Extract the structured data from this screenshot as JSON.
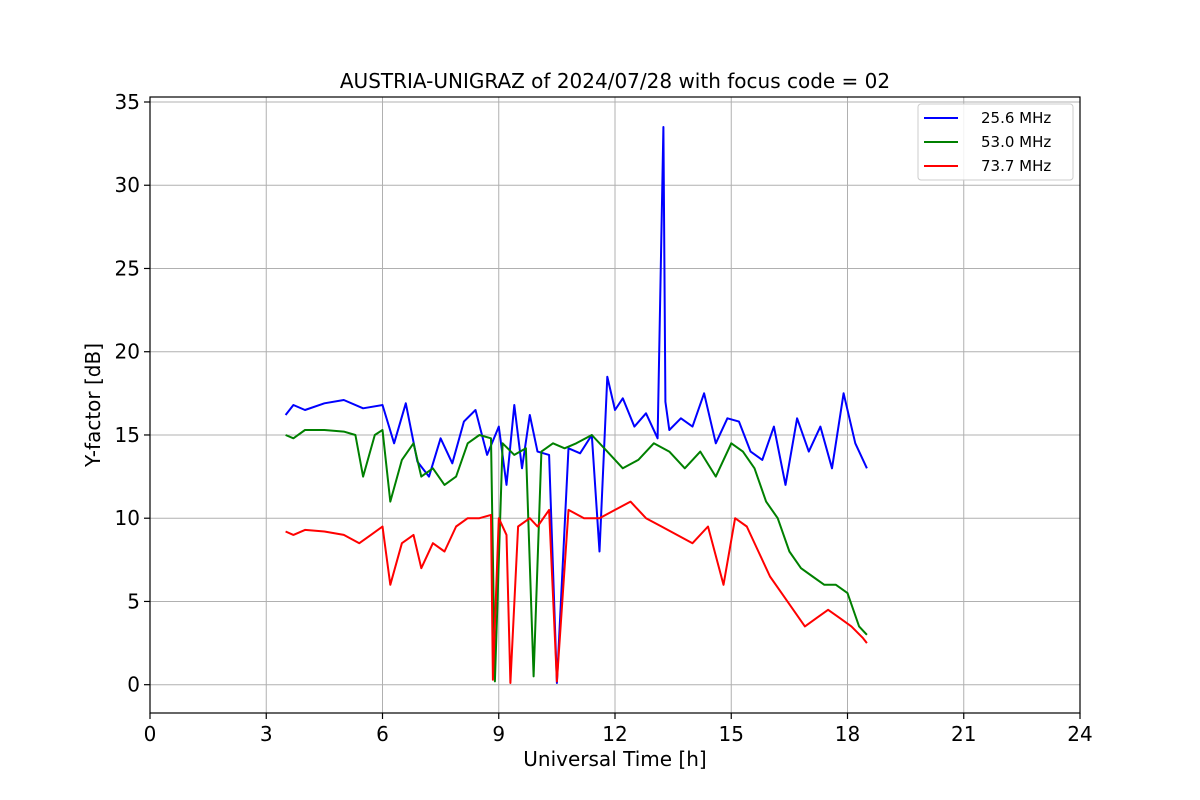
{
  "chart_data": {
    "type": "line",
    "title": "AUSTRIA-UNIGRAZ of 2024/07/28 with focus code = 02",
    "xlabel": "Universal Time [h]",
    "ylabel": "Y-factor [dB]",
    "xlim": [
      0,
      24
    ],
    "ylim": [
      -1.7,
      35.3
    ],
    "x_ticks": [
      0,
      3,
      6,
      9,
      12,
      15,
      18,
      21,
      24
    ],
    "y_ticks": [
      0,
      5,
      10,
      15,
      20,
      25,
      30,
      35
    ],
    "grid": true,
    "legend_position": "top-right",
    "series": [
      {
        "name": "25.6 MHz",
        "color": "#0000ff",
        "x": [
          3.5,
          3.7,
          4.0,
          4.5,
          5.0,
          5.5,
          6.0,
          6.3,
          6.6,
          6.9,
          7.2,
          7.5,
          7.8,
          8.1,
          8.4,
          8.7,
          9.0,
          9.2,
          9.4,
          9.6,
          9.8,
          10.0,
          10.3,
          10.5,
          10.8,
          11.1,
          11.4,
          11.6,
          11.8,
          12.0,
          12.2,
          12.5,
          12.8,
          13.1,
          13.25,
          13.3,
          13.4,
          13.7,
          14.0,
          14.3,
          14.6,
          14.9,
          15.2,
          15.5,
          15.8,
          16.1,
          16.4,
          16.7,
          17.0,
          17.3,
          17.6,
          17.9,
          18.2,
          18.5
        ],
        "values": [
          16.2,
          16.8,
          16.5,
          16.9,
          17.1,
          16.6,
          16.8,
          14.5,
          16.9,
          13.4,
          12.5,
          14.8,
          13.3,
          15.8,
          16.5,
          13.8,
          15.5,
          12.0,
          16.8,
          13.0,
          16.2,
          14.0,
          13.8,
          0.1,
          14.2,
          13.9,
          15.0,
          8.0,
          18.5,
          16.5,
          17.2,
          15.5,
          16.3,
          14.8,
          33.5,
          17.0,
          15.3,
          16.0,
          15.5,
          17.5,
          14.5,
          16.0,
          15.8,
          14.0,
          13.5,
          15.5,
          12.0,
          16.0,
          14.0,
          15.5,
          13.0,
          17.5,
          14.5,
          13.0
        ]
      },
      {
        "name": "53.0 MHz",
        "color": "#008000",
        "x": [
          3.5,
          3.7,
          4.0,
          4.5,
          5.0,
          5.3,
          5.5,
          5.8,
          6.0,
          6.2,
          6.5,
          6.8,
          7.0,
          7.3,
          7.6,
          7.9,
          8.2,
          8.5,
          8.8,
          8.9,
          9.1,
          9.4,
          9.7,
          9.9,
          10.1,
          10.4,
          10.7,
          11.0,
          11.4,
          11.8,
          12.2,
          12.6,
          13.0,
          13.4,
          13.8,
          14.2,
          14.6,
          15.0,
          15.3,
          15.6,
          15.9,
          16.2,
          16.5,
          16.8,
          17.1,
          17.4,
          17.7,
          18.0,
          18.3,
          18.5
        ],
        "values": [
          15.0,
          14.8,
          15.3,
          15.3,
          15.2,
          15.0,
          12.5,
          15.0,
          15.3,
          11.0,
          13.5,
          14.5,
          12.5,
          13.0,
          12.0,
          12.5,
          14.5,
          15.0,
          14.8,
          0.2,
          14.5,
          13.8,
          14.2,
          0.5,
          14.0,
          14.5,
          14.2,
          14.5,
          15.0,
          14.0,
          13.0,
          13.5,
          14.5,
          14.0,
          13.0,
          14.0,
          12.5,
          14.5,
          14.0,
          13.0,
          11.0,
          10.0,
          8.0,
          7.0,
          6.5,
          6.0,
          6.0,
          5.5,
          3.5,
          3.0
        ]
      },
      {
        "name": "73.7 MHz",
        "color": "#ff0000",
        "x": [
          3.5,
          3.7,
          4.0,
          4.5,
          5.0,
          5.4,
          5.7,
          6.0,
          6.2,
          6.5,
          6.8,
          7.0,
          7.3,
          7.6,
          7.9,
          8.2,
          8.5,
          8.8,
          8.85,
          9.0,
          9.2,
          9.3,
          9.5,
          9.8,
          10.0,
          10.3,
          10.5,
          10.8,
          11.2,
          11.6,
          12.0,
          12.4,
          12.8,
          13.2,
          13.6,
          14.0,
          14.4,
          14.8,
          15.1,
          15.4,
          15.7,
          16.0,
          16.3,
          16.6,
          16.9,
          17.2,
          17.5,
          17.8,
          18.1,
          18.4,
          18.5
        ],
        "values": [
          9.2,
          9.0,
          9.3,
          9.2,
          9.0,
          8.5,
          9.0,
          9.5,
          6.0,
          8.5,
          9.0,
          7.0,
          8.5,
          8.0,
          9.5,
          10.0,
          10.0,
          10.2,
          0.3,
          10.0,
          9.0,
          0.1,
          9.5,
          10.0,
          9.5,
          10.5,
          0.2,
          10.5,
          10.0,
          10.0,
          10.5,
          11.0,
          10.0,
          9.5,
          9.0,
          8.5,
          9.5,
          6.0,
          10.0,
          9.5,
          8.0,
          6.5,
          5.5,
          4.5,
          3.5,
          4.0,
          4.5,
          4.0,
          3.5,
          2.8,
          2.5
        ]
      }
    ]
  }
}
